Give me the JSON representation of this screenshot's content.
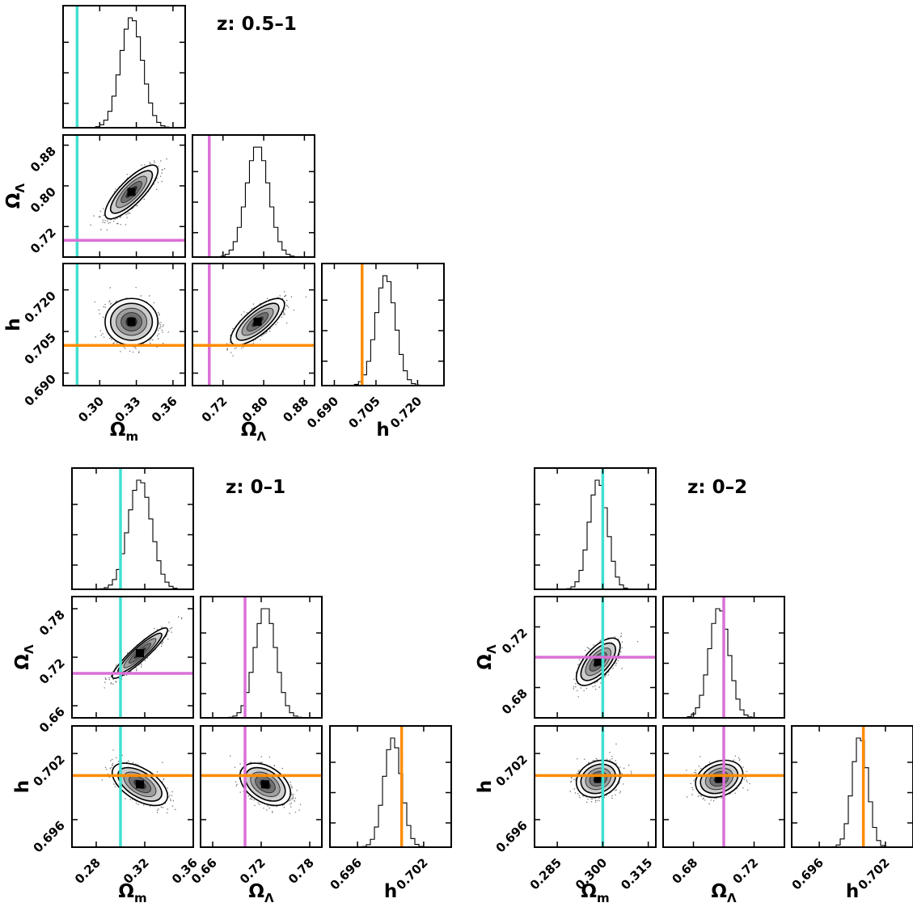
{
  "chart_data": [
    {
      "type": "corner",
      "title": "z: 0.5–1",
      "parameters": [
        {
          "symbol": "Ω",
          "sub": "m",
          "range": [
            0.27,
            0.37
          ],
          "ticks": [
            "0.30",
            "0.33",
            "0.36"
          ],
          "tick_values": [
            0.3,
            0.33,
            0.36
          ],
          "truth": 0.2815,
          "mean": 0.326,
          "sd": 0.009,
          "truth_color": "#40e0d0"
        },
        {
          "symbol": "Ω",
          "sub": "Λ",
          "range": [
            0.66,
            0.9
          ],
          "ticks": [
            "0.72",
            "0.80",
            "0.88"
          ],
          "tick_values": [
            0.72,
            0.8,
            0.88
          ],
          "truth": 0.693,
          "mean": 0.788,
          "sd": 0.022,
          "truth_color": "#da70d6"
        },
        {
          "symbol": "h",
          "sub": "",
          "range": [
            0.6855,
            0.7295
          ],
          "ticks": [
            "0.690",
            "0.705",
            "0.720"
          ],
          "tick_values": [
            0.69,
            0.705,
            0.72
          ],
          "truth": 0.7,
          "mean": 0.7085,
          "sd": 0.0035,
          "truth_color": "#ff8c00"
        }
      ],
      "correlations": {
        "0-1": 0.8,
        "0-2": 0.0,
        "1-2": 0.75
      }
    },
    {
      "type": "corner",
      "title": "z: 0–1",
      "parameters": [
        {
          "symbol": "Ω",
          "sub": "m",
          "range": [
            0.26,
            0.36
          ],
          "ticks": [
            "0.28",
            "0.32",
            "0.36"
          ],
          "tick_values": [
            0.28,
            0.32,
            0.36
          ],
          "truth": 0.3,
          "mean": 0.316,
          "sd": 0.0095,
          "truth_color": "#40e0d0"
        },
        {
          "symbol": "Ω",
          "sub": "Λ",
          "range": [
            0.645,
            0.795
          ],
          "ticks": [
            "0.66",
            "0.72",
            "0.78"
          ],
          "tick_values": [
            0.66,
            0.72,
            0.78
          ],
          "truth": 0.7,
          "mean": 0.725,
          "sd": 0.013,
          "truth_color": "#da70d6"
        },
        {
          "symbol": "h",
          "sub": "",
          "range": [
            0.6935,
            0.7045
          ],
          "ticks": [
            "0.696",
            "0.702"
          ],
          "tick_values": [
            0.696,
            0.702
          ],
          "truth": 0.7,
          "mean": 0.6992,
          "sd": 0.0008,
          "truth_color": "#ff8c00"
        }
      ],
      "correlations": {
        "0-1": 0.92,
        "0-2": -0.55,
        "1-2": -0.4
      }
    },
    {
      "type": "corner",
      "title": "z: 0–2",
      "parameters": [
        {
          "symbol": "Ω",
          "sub": "m",
          "range": [
            0.2775,
            0.3175
          ],
          "ticks": [
            "0.285",
            "0.300",
            "0.315"
          ],
          "tick_values": [
            0.285,
            0.3,
            0.315
          ],
          "truth": 0.3,
          "mean": 0.2985,
          "sd": 0.003,
          "truth_color": "#40e0d0"
        },
        {
          "symbol": "Ω",
          "sub": "Λ",
          "range": [
            0.66,
            0.74
          ],
          "ticks": [
            "0.68",
            "0.72"
          ],
          "tick_values": [
            0.68,
            0.72
          ],
          "truth": 0.7,
          "mean": 0.697,
          "sd": 0.0065,
          "truth_color": "#da70d6"
        },
        {
          "symbol": "h",
          "sub": "",
          "range": [
            0.6935,
            0.7045
          ],
          "ticks": [
            "0.696",
            "0.702"
          ],
          "tick_values": [
            0.696,
            0.702
          ],
          "truth": 0.7,
          "mean": 0.6997,
          "sd": 0.0007,
          "truth_color": "#ff8c00"
        }
      ],
      "correlations": {
        "0-1": 0.65,
        "0-2": 0.2,
        "1-2": 0.25
      }
    }
  ],
  "colors": {
    "frame": "#000000",
    "density": "#000000"
  }
}
